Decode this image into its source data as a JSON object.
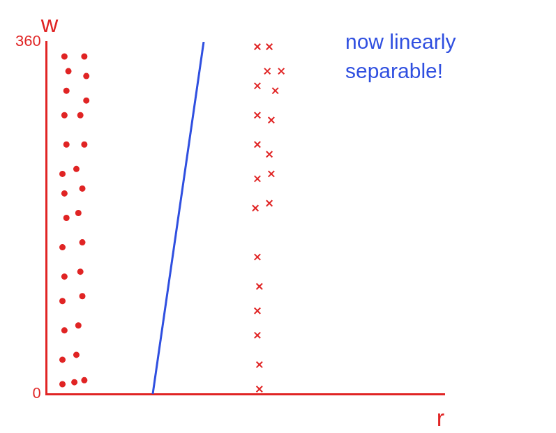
{
  "chart_data": {
    "type": "scatter",
    "annotation": "now linearly separable!",
    "xlabel": "r",
    "ylabel": "w",
    "xlim": [
      0,
      10
    ],
    "ylim": [
      0,
      360
    ],
    "yticks": [
      0,
      360
    ],
    "tick_labels": "y",
    "grid": false,
    "series": [
      {
        "color": "#e02424",
        "marker": "circle",
        "x": [
          0.45,
          0.95,
          0.55,
          1.0,
          0.5,
          1.0,
          0.45,
          0.85,
          0.5,
          0.95,
          0.4,
          0.75,
          0.45,
          0.9,
          0.5,
          0.8,
          0.4,
          0.9,
          0.45,
          0.85,
          0.4,
          0.9,
          0.45,
          0.8,
          0.4,
          0.75,
          0.4,
          0.7,
          0.95
        ],
        "values": [
          345,
          345,
          330,
          325,
          310,
          300,
          285,
          285,
          255,
          255,
          225,
          230,
          205,
          210,
          180,
          185,
          150,
          155,
          120,
          125,
          95,
          100,
          65,
          70,
          35,
          40,
          10,
          12,
          14
        ]
      },
      {
        "color": "#e02424",
        "marker": "cross",
        "x": [
          5.3,
          5.6,
          5.55,
          5.9,
          5.3,
          5.75,
          5.3,
          5.65,
          5.3,
          5.6,
          5.3,
          5.65,
          5.25,
          5.6,
          5.3,
          5.35,
          5.3,
          5.3,
          5.35,
          5.35
        ],
        "values": [
          355,
          355,
          330,
          330,
          315,
          310,
          285,
          280,
          255,
          245,
          220,
          225,
          190,
          195,
          140,
          110,
          85,
          60,
          30,
          5
        ]
      },
      {
        "color": "#2f4fe0",
        "type": "line",
        "marker": "none",
        "line_style": "solid",
        "x": [
          2.67,
          3.95
        ],
        "values": [
          0,
          360
        ]
      }
    ]
  }
}
